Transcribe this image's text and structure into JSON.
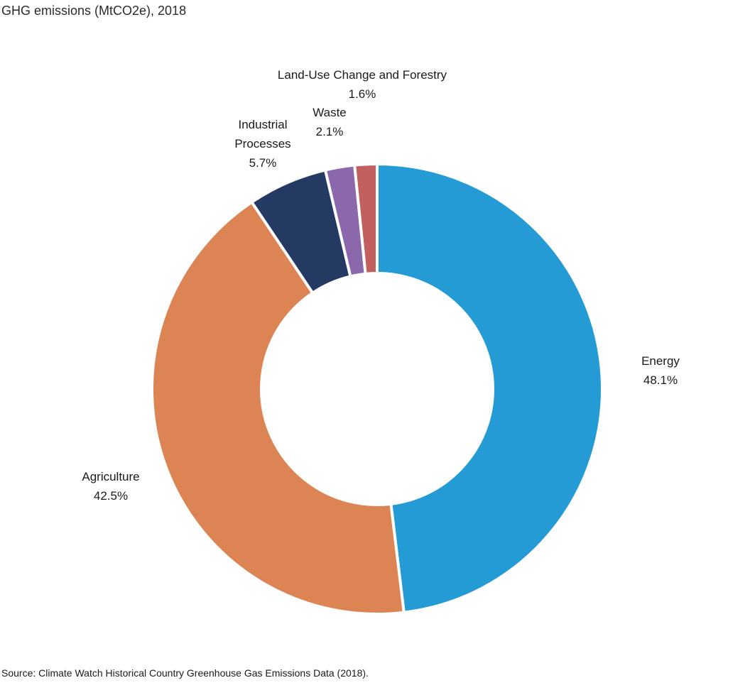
{
  "chart_data": {
    "type": "pie",
    "title": "GHG emissions (MtCO2e), 2018",
    "source": "Source: Climate Watch Historical Country Greenhouse Gas Emissions Data (2018).",
    "slices": [
      {
        "label": "Energy",
        "label_lines": [
          "Energy"
        ],
        "percent_label": "48.1%",
        "value": 48.1,
        "color": "#259bd6"
      },
      {
        "label": "Agriculture",
        "label_lines": [
          "Agriculture"
        ],
        "percent_label": "42.5%",
        "value": 42.5,
        "color": "#dc8453"
      },
      {
        "label": "Industrial Processes",
        "label_lines": [
          "Industrial",
          "Processes"
        ],
        "percent_label": "5.7%",
        "value": 5.7,
        "color": "#243a63"
      },
      {
        "label": "Waste",
        "label_lines": [
          "Waste"
        ],
        "percent_label": "2.1%",
        "value": 2.1,
        "color": "#8b68ab"
      },
      {
        "label": "Land-Use Change and Forestry",
        "label_lines": [
          "Land-Use Change and Forestry"
        ],
        "percent_label": "1.6%",
        "value": 1.6,
        "color": "#c25f5f"
      }
    ]
  }
}
